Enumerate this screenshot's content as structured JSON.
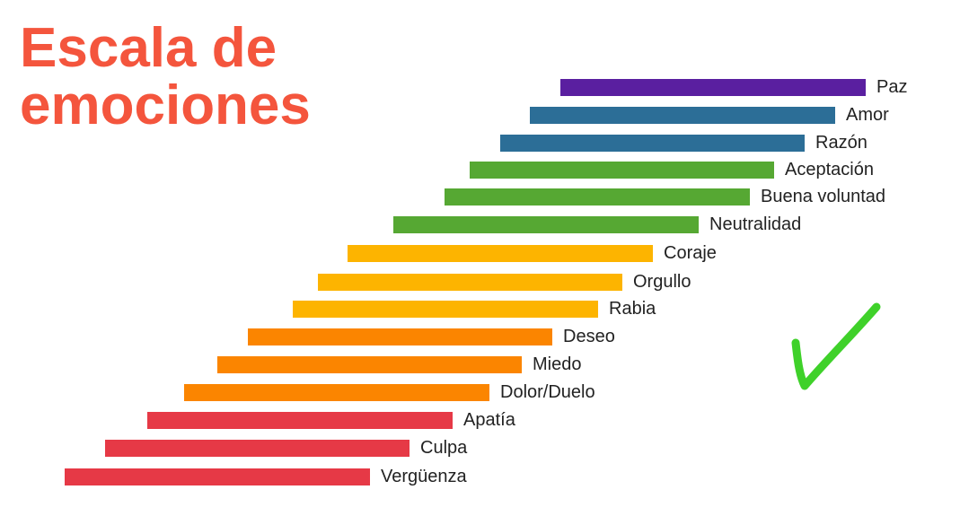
{
  "title": {
    "line1": "Escala de",
    "line2": "emociones",
    "color": "#f4553d"
  },
  "scale": [
    {
      "label": "Paz",
      "color": "#5a1fa0"
    },
    {
      "label": "Amor",
      "color": "#2c6e97"
    },
    {
      "label": "Razón",
      "color": "#2c6e97"
    },
    {
      "label": "Aceptación",
      "color": "#56a833"
    },
    {
      "label": "Buena voluntad",
      "color": "#56a833"
    },
    {
      "label": "Neutralidad",
      "color": "#56a833"
    },
    {
      "label": "Coraje",
      "color": "#fdb400"
    },
    {
      "label": "Orgullo",
      "color": "#fdb400"
    },
    {
      "label": "Rabia",
      "color": "#fdb400"
    },
    {
      "label": "Deseo",
      "color": "#fb8500"
    },
    {
      "label": "Miedo",
      "color": "#fb8500"
    },
    {
      "label": "Dolor/Duelo",
      "color": "#fb8500"
    },
    {
      "label": "Apatía",
      "color": "#e63946"
    },
    {
      "label": "Culpa",
      "color": "#e63946"
    },
    {
      "label": "Vergüenza",
      "color": "#e63946"
    }
  ],
  "checkmark": {
    "icon": "checkmark-icon",
    "color": "#3fd12a"
  }
}
